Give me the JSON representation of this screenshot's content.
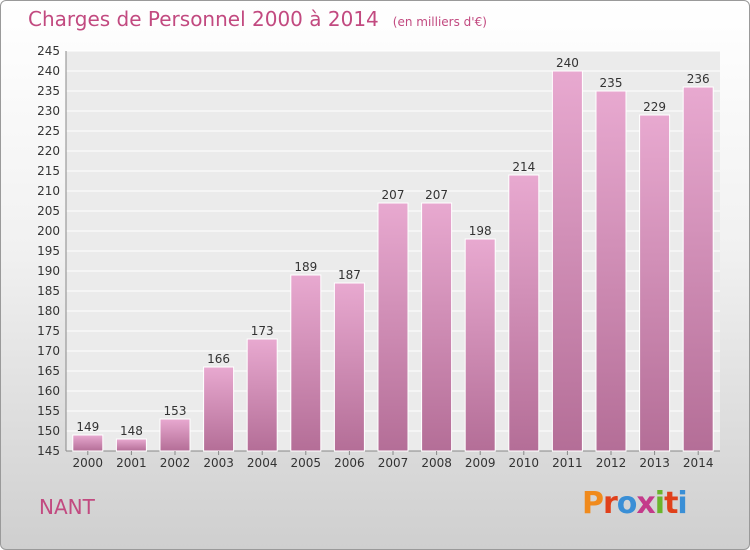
{
  "header": {
    "title": "Charges de Personnel 2000 à 2014",
    "subtitle": "(en milliers d'€)"
  },
  "footer": {
    "commune": "NANT",
    "logo_text": "Proxiti"
  },
  "colors": {
    "title": "#c24a80",
    "bar_top": "#e8a9d0",
    "bar_bottom": "#b46e97",
    "logo": [
      "#f08a1c",
      "#e0401a",
      "#3a8fd6",
      "#c43a8a",
      "#6ab52b",
      "#e0401a",
      "#3a8fd6"
    ]
  },
  "chart_data": {
    "type": "bar",
    "title": "Charges de Personnel 2000 à 2014",
    "subtitle": "(en milliers d'€)",
    "categories": [
      "2000",
      "2001",
      "2002",
      "2003",
      "2004",
      "2005",
      "2006",
      "2007",
      "2008",
      "2009",
      "2010",
      "2011",
      "2012",
      "2013",
      "2014"
    ],
    "values": [
      149,
      148,
      153,
      166,
      173,
      189,
      187,
      207,
      207,
      198,
      214,
      240,
      235,
      229,
      236
    ],
    "ylim": [
      145,
      245
    ],
    "yticks": [
      145,
      150,
      155,
      160,
      165,
      170,
      175,
      180,
      185,
      190,
      195,
      200,
      205,
      210,
      215,
      220,
      225,
      230,
      235,
      240,
      245
    ],
    "grid": true,
    "legend": "none"
  }
}
